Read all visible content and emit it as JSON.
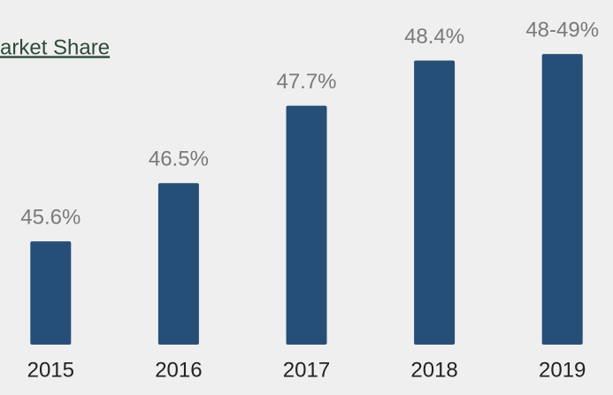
{
  "chart_data": {
    "type": "bar",
    "title": "arket Share",
    "categories": [
      "2015",
      "2016",
      "2017",
      "2018",
      "2019"
    ],
    "values": [
      45.6,
      46.5,
      47.7,
      48.4,
      48.5
    ],
    "value_labels": [
      "45.6%",
      "46.5%",
      "47.7%",
      "48.4%",
      "48-49%"
    ],
    "color": "#264f78",
    "ylim": [
      44,
      49.2
    ]
  }
}
